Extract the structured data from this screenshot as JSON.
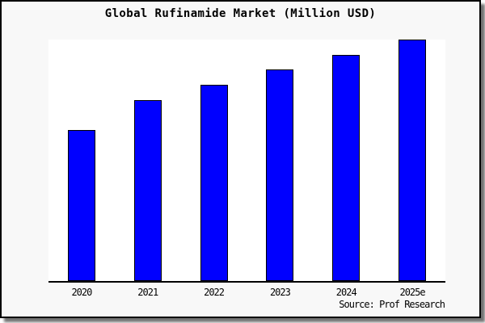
{
  "window": {
    "background_color": "#f8f8f8",
    "border_color": "#000000",
    "plot_background_color": "#ffffff"
  },
  "chart": {
    "title": "Global Rufinamide Market (Million USD)",
    "source": "Source: Prof Research",
    "bar_color": "#0000ff",
    "bar_border_color": "#000000",
    "axis_color": "#000000"
  },
  "chart_data": {
    "type": "bar",
    "title": "Global Rufinamide Market (Million USD)",
    "categories": [
      "2020",
      "2021",
      "2022",
      "2023",
      "2024",
      "2025e"
    ],
    "values_pct_of_max": [
      62.7,
      75.0,
      81.3,
      87.7,
      93.8,
      100
    ],
    "note": "No y-axis scale or value labels shown in chart; values are bar heights measured as percent of the tallest bar (2025e = 100).",
    "xlabel": "",
    "ylabel": "",
    "y_axis_shown": false,
    "grid": false,
    "legend": "none",
    "annotations": [
      "Source: Prof Research"
    ]
  }
}
